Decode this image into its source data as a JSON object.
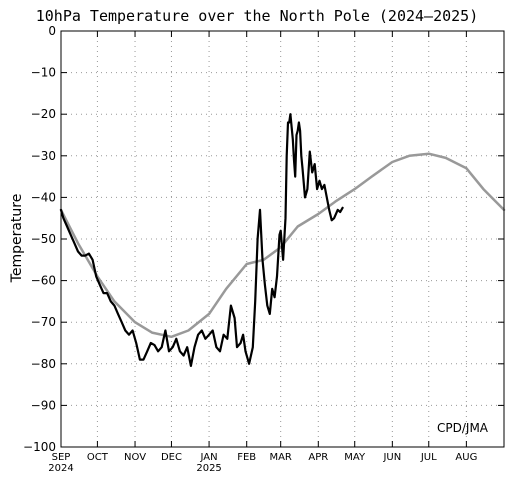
{
  "chart_data": {
    "type": "line",
    "title": "10hPa Temperature over the North Pole (2024–2025)",
    "ylabel": "Temperature",
    "xlabel": "",
    "ylim": [
      -100,
      0
    ],
    "yticks": [
      0,
      -10,
      -20,
      -30,
      -40,
      -50,
      -60,
      -70,
      -80,
      -90,
      -100
    ],
    "xlim": [
      "2024-09-01",
      "2025-09-01"
    ],
    "month_ticks": [
      {
        "date": "2024-09-01",
        "label": "SEP",
        "year": "2024"
      },
      {
        "date": "2024-10-01",
        "label": "OCT",
        "year": ""
      },
      {
        "date": "2024-11-01",
        "label": "NOV",
        "year": ""
      },
      {
        "date": "2024-12-01",
        "label": "DEC",
        "year": ""
      },
      {
        "date": "2025-01-01",
        "label": "JAN",
        "year": "2025"
      },
      {
        "date": "2025-02-01",
        "label": "FEB",
        "year": ""
      },
      {
        "date": "2025-03-01",
        "label": "MAR",
        "year": ""
      },
      {
        "date": "2025-04-01",
        "label": "APR",
        "year": ""
      },
      {
        "date": "2025-05-01",
        "label": "MAY",
        "year": ""
      },
      {
        "date": "2025-06-01",
        "label": "JUN",
        "year": ""
      },
      {
        "date": "2025-07-01",
        "label": "JUL",
        "year": ""
      },
      {
        "date": "2025-08-01",
        "label": "AUG",
        "year": ""
      }
    ],
    "grid": true,
    "annotation": "CPD/JMA",
    "series": [
      {
        "color": "#999999",
        "points": [
          [
            "2024-09-01",
            -43
          ],
          [
            "2024-09-15",
            -51
          ],
          [
            "2024-10-01",
            -59
          ],
          [
            "2024-10-15",
            -65
          ],
          [
            "2024-11-01",
            -70
          ],
          [
            "2024-11-15",
            -72.5
          ],
          [
            "2024-12-01",
            -73.5
          ],
          [
            "2024-12-15",
            -72
          ],
          [
            "2025-01-01",
            -68
          ],
          [
            "2025-01-15",
            -62
          ],
          [
            "2025-02-01",
            -56
          ],
          [
            "2025-02-15",
            -55
          ],
          [
            "2025-03-01",
            -52
          ],
          [
            "2025-03-15",
            -47
          ],
          [
            "2025-04-01",
            -44
          ],
          [
            "2025-04-15",
            -41
          ],
          [
            "2025-05-01",
            -38
          ],
          [
            "2025-05-15",
            -35
          ],
          [
            "2025-06-01",
            -31.5
          ],
          [
            "2025-06-15",
            -30
          ],
          [
            "2025-07-01",
            -29.5
          ],
          [
            "2025-07-15",
            -30.5
          ],
          [
            "2025-08-01",
            -33
          ],
          [
            "2025-08-15",
            -38
          ],
          [
            "2025-09-01",
            -43
          ]
        ]
      },
      {
        "color": "#000000",
        "points": [
          [
            "2024-09-01",
            -43
          ],
          [
            "2024-09-03",
            -45
          ],
          [
            "2024-09-06",
            -47
          ],
          [
            "2024-09-09",
            -49
          ],
          [
            "2024-09-12",
            -51
          ],
          [
            "2024-09-15",
            -53
          ],
          [
            "2024-09-18",
            -54
          ],
          [
            "2024-09-21",
            -54
          ],
          [
            "2024-09-24",
            -53.5
          ],
          [
            "2024-09-27",
            -55
          ],
          [
            "2024-09-30",
            -59
          ],
          [
            "2024-10-03",
            -61
          ],
          [
            "2024-10-06",
            -63
          ],
          [
            "2024-10-09",
            -63
          ],
          [
            "2024-10-12",
            -65
          ],
          [
            "2024-10-15",
            -66
          ],
          [
            "2024-10-18",
            -68
          ],
          [
            "2024-10-21",
            -70
          ],
          [
            "2024-10-24",
            -72
          ],
          [
            "2024-10-27",
            -73
          ],
          [
            "2024-10-30",
            -72
          ],
          [
            "2024-11-02",
            -75
          ],
          [
            "2024-11-05",
            -79
          ],
          [
            "2024-11-08",
            -79
          ],
          [
            "2024-11-11",
            -77
          ],
          [
            "2024-11-14",
            -75
          ],
          [
            "2024-11-17",
            -75.5
          ],
          [
            "2024-11-20",
            -77
          ],
          [
            "2024-11-23",
            -76
          ],
          [
            "2024-11-26",
            -72
          ],
          [
            "2024-11-29",
            -77
          ],
          [
            "2024-12-02",
            -76
          ],
          [
            "2024-12-05",
            -74
          ],
          [
            "2024-12-08",
            -77
          ],
          [
            "2024-12-11",
            -78
          ],
          [
            "2024-12-14",
            -76
          ],
          [
            "2024-12-17",
            -80.5
          ],
          [
            "2024-12-20",
            -76
          ],
          [
            "2024-12-23",
            -73
          ],
          [
            "2024-12-26",
            -72
          ],
          [
            "2024-12-29",
            -74
          ],
          [
            "2025-01-01",
            -73
          ],
          [
            "2025-01-04",
            -72
          ],
          [
            "2025-01-07",
            -76
          ],
          [
            "2025-01-10",
            -77
          ],
          [
            "2025-01-13",
            -73
          ],
          [
            "2025-01-16",
            -74
          ],
          [
            "2025-01-19",
            -66
          ],
          [
            "2025-01-22",
            -69
          ],
          [
            "2025-01-24",
            -76
          ],
          [
            "2025-01-27",
            -75
          ],
          [
            "2025-01-29",
            -73
          ],
          [
            "2025-01-31",
            -77
          ],
          [
            "2025-02-03",
            -80
          ],
          [
            "2025-02-06",
            -76
          ],
          [
            "2025-02-08",
            -65
          ],
          [
            "2025-02-10",
            -50
          ],
          [
            "2025-02-12",
            -43
          ],
          [
            "2025-02-14",
            -55
          ],
          [
            "2025-02-16",
            -61
          ],
          [
            "2025-02-18",
            -66
          ],
          [
            "2025-02-20",
            -68
          ],
          [
            "2025-02-22",
            -62
          ],
          [
            "2025-02-24",
            -64
          ],
          [
            "2025-02-26",
            -59
          ],
          [
            "2025-02-28",
            -49
          ],
          [
            "2025-03-01",
            -48
          ],
          [
            "2025-03-03",
            -55
          ],
          [
            "2025-03-05",
            -45
          ],
          [
            "2025-03-06",
            -30
          ],
          [
            "2025-03-07",
            -22
          ],
          [
            "2025-03-08",
            -22
          ],
          [
            "2025-03-09",
            -20
          ],
          [
            "2025-03-10",
            -23
          ],
          [
            "2025-03-11",
            -26
          ],
          [
            "2025-03-12",
            -31
          ],
          [
            "2025-03-13",
            -35
          ],
          [
            "2025-03-14",
            -25
          ],
          [
            "2025-03-15",
            -24
          ],
          [
            "2025-03-16",
            -22
          ],
          [
            "2025-03-17",
            -24
          ],
          [
            "2025-03-18",
            -30
          ],
          [
            "2025-03-19",
            -33
          ],
          [
            "2025-03-21",
            -40
          ],
          [
            "2025-03-23",
            -38
          ],
          [
            "2025-03-25",
            -29
          ],
          [
            "2025-03-27",
            -34
          ],
          [
            "2025-03-29",
            -32
          ],
          [
            "2025-03-31",
            -38
          ],
          [
            "2025-04-02",
            -36
          ],
          [
            "2025-04-04",
            -38
          ],
          [
            "2025-04-06",
            -37
          ],
          [
            "2025-04-08",
            -40
          ],
          [
            "2025-04-10",
            -43
          ],
          [
            "2025-04-12",
            -45.5
          ],
          [
            "2025-04-14",
            -45
          ],
          [
            "2025-04-17",
            -43
          ],
          [
            "2025-04-19",
            -43.5
          ],
          [
            "2025-04-21",
            -42.5
          ]
        ]
      }
    ]
  }
}
